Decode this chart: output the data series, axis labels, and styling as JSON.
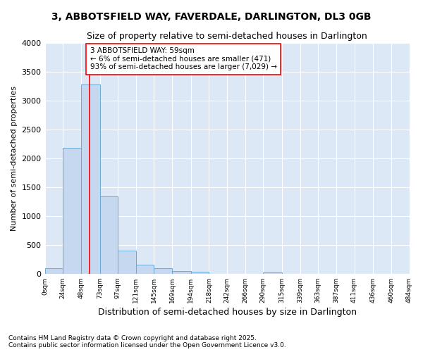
{
  "title1": "3, ABBOTSFIELD WAY, FAVERDALE, DARLINGTON, DL3 0GB",
  "title2": "Size of property relative to semi-detached houses in Darlington",
  "xlabel": "Distribution of semi-detached houses by size in Darlington",
  "ylabel": "Number of semi-detached properties",
  "footer1": "Contains HM Land Registry data © Crown copyright and database right 2025.",
  "footer2": "Contains public sector information licensed under the Open Government Licence v3.0.",
  "annotation_title": "3 ABBOTSFIELD WAY: 59sqm",
  "annotation_line1": "← 6% of semi-detached houses are smaller (471)",
  "annotation_line2": "93% of semi-detached houses are larger (7,029) →",
  "property_size": 59,
  "bin_edges": [
    0,
    24,
    48,
    73,
    97,
    121,
    145,
    169,
    194,
    218,
    242,
    266,
    290,
    315,
    339,
    363,
    387,
    411,
    436,
    460,
    484
  ],
  "bar_heights": [
    100,
    2180,
    3280,
    1340,
    395,
    160,
    90,
    50,
    40,
    0,
    0,
    0,
    25,
    0,
    0,
    0,
    0,
    0,
    0,
    0
  ],
  "bar_color": "#c5d8f0",
  "bar_edge_color": "#6aaad4",
  "vline_color": "red",
  "fig_background_color": "#ffffff",
  "plot_background_color": "#dce8f5",
  "grid_color": "#ffffff",
  "ylim": [
    0,
    4000
  ],
  "yticks": [
    0,
    500,
    1000,
    1500,
    2000,
    2500,
    3000,
    3500,
    4000
  ],
  "tick_labels": [
    "0sqm",
    "24sqm",
    "48sqm",
    "73sqm",
    "97sqm",
    "121sqm",
    "145sqm",
    "169sqm",
    "194sqm",
    "218sqm",
    "242sqm",
    "266sqm",
    "290sqm",
    "315sqm",
    "339sqm",
    "363sqm",
    "387sqm",
    "411sqm",
    "436sqm",
    "460sqm",
    "484sqm"
  ]
}
